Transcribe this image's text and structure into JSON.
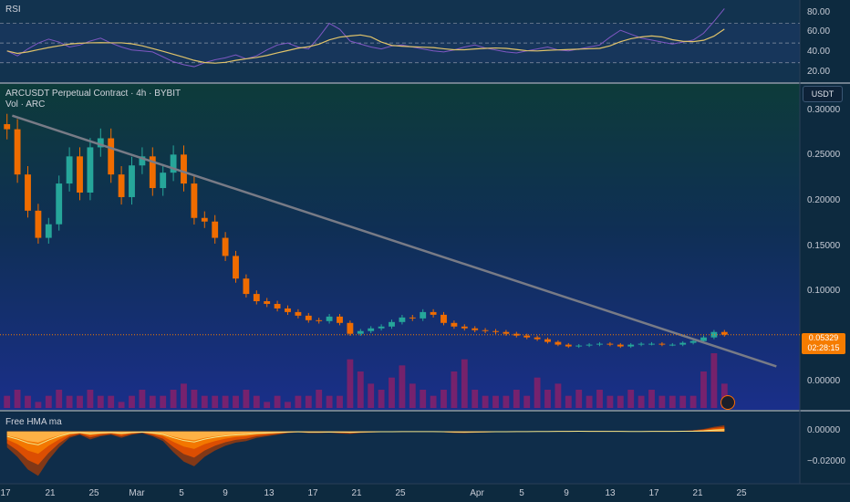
{
  "header": {
    "title": "ARCUSDT Perpetual Contract · 4h · BYBIT",
    "subtitle": "Vol · ARC",
    "rsi_label": "RSI",
    "indicator_label": "Free HMA ma",
    "currency": "USDT"
  },
  "price_tag": {
    "price": "0.05329",
    "countdown": "02:28:15"
  },
  "colors": {
    "up": "#26a69a",
    "down": "#ef6c00",
    "trendline": "#787b86",
    "rsi_line": "#7e57c2",
    "rsi_ma": "#e0c36a",
    "volume": "#c2185b",
    "hma": "#ff9800"
  },
  "chart_data": [
    {
      "type": "line",
      "name": "RSI",
      "ylim": [
        14,
        90
      ],
      "yticks": [
        "80.00",
        "60.00",
        "40.00",
        "20.00"
      ],
      "bands": [
        70,
        50,
        30
      ],
      "values": [
        42,
        37,
        44,
        50,
        54,
        51,
        46,
        48,
        52,
        55,
        50,
        46,
        43,
        42,
        41,
        36,
        31,
        28,
        26,
        30,
        33,
        35,
        38,
        34,
        37,
        43,
        48,
        50,
        46,
        44,
        56,
        70,
        64,
        52,
        49,
        46,
        44,
        47,
        48,
        46,
        44,
        42,
        41,
        43,
        46,
        48,
        45,
        43,
        41,
        40,
        42,
        44,
        46,
        43,
        42,
        44,
        46,
        48,
        56,
        63,
        59,
        55,
        53,
        51,
        49,
        51,
        53,
        60,
        72,
        85
      ]
    },
    {
      "type": "bar",
      "name": "ARCUSDT Perpetual Contract",
      "timeframe": "4h",
      "exchange": "BYBIT",
      "ylim": [
        -0.03,
        0.33
      ],
      "yticks": [
        "0.30000",
        "0.25000",
        "0.20000",
        "0.15000",
        "0.10000",
        "0.00000"
      ],
      "xticks": [
        "17",
        "21",
        "25",
        "Mar",
        "5",
        "9",
        "13",
        "17",
        "21",
        "25",
        "Apr",
        "5",
        "9",
        "13",
        "17",
        "21",
        "25"
      ],
      "close": [
        0.28,
        0.23,
        0.19,
        0.16,
        0.175,
        0.22,
        0.25,
        0.21,
        0.26,
        0.27,
        0.23,
        0.205,
        0.24,
        0.25,
        0.215,
        0.232,
        0.252,
        0.22,
        0.182,
        0.178,
        0.16,
        0.14,
        0.115,
        0.098,
        0.09,
        0.087,
        0.082,
        0.078,
        0.074,
        0.069,
        0.068,
        0.073,
        0.066,
        0.054,
        0.057,
        0.06,
        0.062,
        0.067,
        0.072,
        0.071,
        0.078,
        0.075,
        0.066,
        0.062,
        0.06,
        0.058,
        0.057,
        0.056,
        0.054,
        0.052,
        0.05,
        0.048,
        0.045,
        0.042,
        0.04,
        0.041,
        0.042,
        0.043,
        0.042,
        0.04,
        0.042,
        0.043,
        0.043,
        0.042,
        0.042,
        0.044,
        0.046,
        0.05,
        0.056,
        0.053
      ],
      "volume": [
        2,
        3,
        2,
        1,
        2,
        3,
        2,
        2,
        3,
        2,
        2,
        1,
        2,
        3,
        2,
        2,
        3,
        4,
        3,
        2,
        2,
        2,
        2,
        3,
        2,
        1,
        2,
        1,
        2,
        2,
        3,
        2,
        2,
        8,
        6,
        4,
        3,
        5,
        7,
        4,
        3,
        2,
        3,
        6,
        8,
        3,
        2,
        2,
        2,
        3,
        2,
        5,
        3,
        4,
        2,
        3,
        2,
        3,
        2,
        2,
        3,
        2,
        3,
        2,
        2,
        2,
        2,
        6,
        9,
        4
      ],
      "trendline": {
        "from": [
          0.5,
          0.295
        ],
        "to": [
          74,
          0.018
        ]
      }
    },
    {
      "type": "area",
      "name": "Free HMA ma",
      "ylim": [
        -0.033,
        0.012
      ],
      "yticks": [
        "0.00000",
        "−0.02000"
      ],
      "values": [
        -0.01,
        -0.016,
        -0.024,
        -0.028,
        -0.018,
        -0.01,
        -0.004,
        -0.002,
        -0.005,
        -0.003,
        -0.002,
        -0.004,
        -0.002,
        -0.001,
        -0.003,
        -0.006,
        -0.013,
        -0.019,
        -0.022,
        -0.016,
        -0.012,
        -0.009,
        -0.007,
        -0.006,
        -0.004,
        -0.003,
        -0.002,
        -0.001,
        -0.0005,
        -0.001,
        -0.001,
        -0.0008,
        -0.0012,
        -0.0015,
        -0.0009,
        -0.0006,
        -0.0004,
        -0.0003,
        -0.0002,
        -0.0001,
        -0.0001,
        -0.0002,
        -0.0005,
        -0.0009,
        -0.001,
        -0.0008,
        -0.0006,
        -0.0004,
        -0.0003,
        -0.0002,
        -0.0001,
        0,
        0.0002,
        0.0003,
        0.0004,
        0.0005,
        0.0004,
        0.0004,
        0.0003,
        0.0003,
        0.0002,
        0.0002,
        0.0003,
        0.0004,
        0.0004,
        0.0005,
        0.0008,
        0.0016,
        0.003,
        0.004
      ]
    }
  ]
}
